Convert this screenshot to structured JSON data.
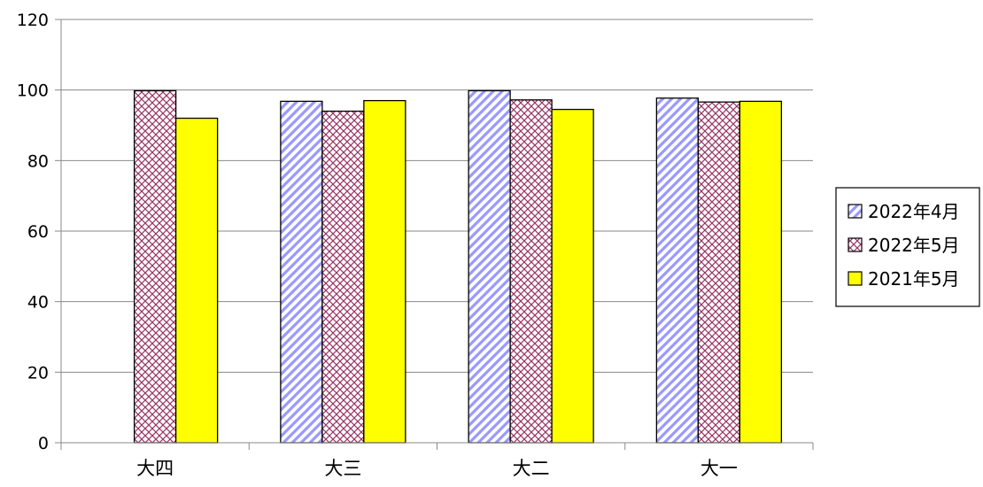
{
  "chart_data": {
    "type": "bar",
    "title": "",
    "xlabel": "",
    "ylabel": "",
    "categories": [
      "大四",
      "大三",
      "大二",
      "大一"
    ],
    "ylim": [
      0,
      120
    ],
    "yticks": [
      0,
      20,
      40,
      60,
      80,
      100,
      120
    ],
    "grid": true,
    "legend_position": "right",
    "series": [
      {
        "name": "2022年4月",
        "values": [
          null,
          96.8,
          99.8,
          97.7
        ],
        "color": "#9999ff",
        "pattern": "diagonal-stripes"
      },
      {
        "name": "2022年5月",
        "values": [
          99.8,
          94.0,
          97.2,
          96.6
        ],
        "color": "#993366",
        "pattern": "crosshatch"
      },
      {
        "name": "2021年5月",
        "values": [
          92.0,
          97.0,
          94.5,
          96.8
        ],
        "color": "#ffff00",
        "pattern": "solid"
      }
    ]
  }
}
